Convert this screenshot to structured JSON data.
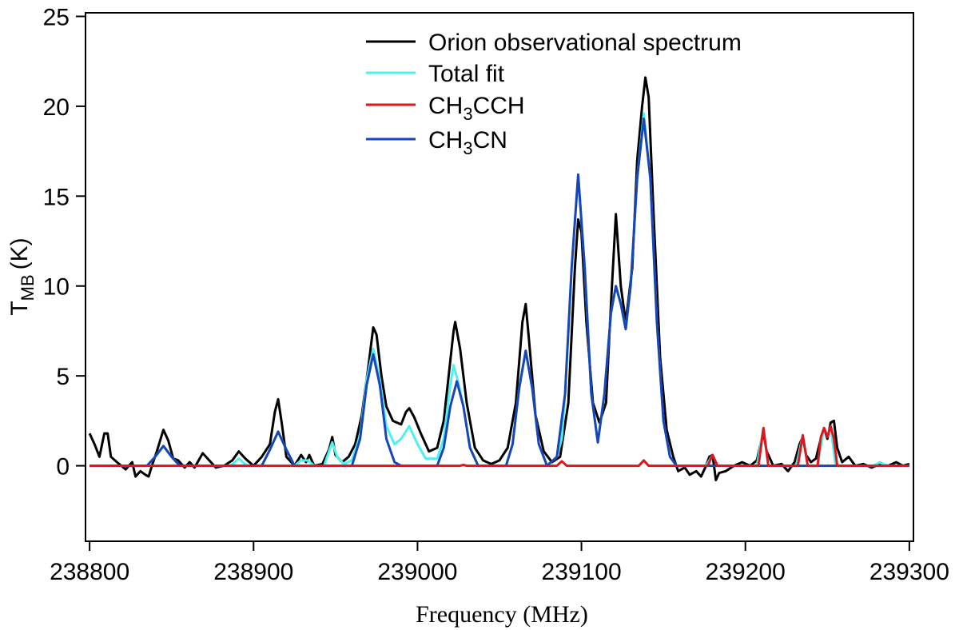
{
  "chart_data": {
    "type": "line",
    "xlabel": "Frequency (MHz)",
    "ylabel": {
      "symbol": "T",
      "subscript": "MB",
      "unit": "(K)"
    },
    "xlim": [
      238797.5,
      239302.5
    ],
    "ylim": [
      -4.2,
      25.2
    ],
    "xticks": [
      238800,
      238900,
      239000,
      239100,
      239200,
      239300
    ],
    "yticks": [
      0,
      5,
      10,
      15,
      20,
      25
    ],
    "legend": "top-center",
    "series": [
      {
        "name": "Orion observational spectrum",
        "color": "#000000",
        "x": [
          238800,
          238803,
          238806,
          238809,
          238811,
          238813,
          238818,
          238822,
          238826,
          238828,
          238831,
          238834,
          238836,
          238838,
          238841,
          238845,
          238848,
          238851,
          238854,
          238858,
          238861,
          238864,
          238869,
          238873,
          238877,
          238882,
          238887,
          238891,
          238895,
          238900,
          238905,
          238910,
          238913,
          238915,
          238917,
          238920,
          238925,
          238929,
          238932,
          238934,
          238937,
          238942,
          238946,
          238948,
          238950,
          238954,
          238958,
          238962,
          238966,
          238970,
          238973,
          238975,
          238978,
          238981,
          238985,
          238990,
          238993,
          238995,
          238998,
          239002,
          239007,
          239012,
          239016,
          239019,
          239022,
          239023,
          239026,
          239030,
          239035,
          239040,
          239045,
          239050,
          239055,
          239060,
          239064,
          239066,
          239068,
          239072,
          239077,
          239082,
          239087,
          239092,
          239096,
          239098,
          239100,
          239103,
          239107,
          239111,
          239115,
          239118,
          239121,
          239124,
          239127,
          239131,
          239134,
          239137,
          239139,
          239141,
          239144,
          239148,
          239152,
          239156,
          239159,
          239163,
          239166,
          239170,
          239173,
          239176,
          239178,
          239180,
          239182,
          239184,
          239188,
          239193,
          239198,
          239203,
          239207,
          239210,
          239211,
          239213,
          239217,
          239222,
          239226,
          239230,
          239233,
          239235,
          239237,
          239240,
          239243,
          239246,
          239248,
          239250,
          239252,
          239254,
          239256,
          239259,
          239263,
          239267,
          239272,
          239277,
          239282,
          239287,
          239292,
          239296,
          239300
        ],
        "values": [
          1.8,
          1.2,
          0.5,
          1.8,
          1.8,
          0.5,
          0.1,
          -0.2,
          0.2,
          -0.6,
          -0.3,
          -0.5,
          -0.6,
          0.0,
          0.8,
          2.0,
          1.4,
          0.4,
          0.3,
          -0.1,
          0.2,
          -0.1,
          0.7,
          0.3,
          -0.1,
          0.0,
          0.3,
          0.8,
          0.4,
          0.0,
          0.5,
          1.2,
          3.0,
          3.7,
          2.5,
          0.5,
          0.0,
          0.6,
          0.2,
          0.6,
          0.0,
          0.1,
          0.9,
          1.6,
          0.6,
          0.2,
          0.5,
          1.2,
          2.8,
          5.5,
          7.7,
          7.3,
          5.0,
          3.3,
          2.5,
          2.3,
          3.0,
          3.2,
          2.7,
          1.8,
          0.8,
          1.0,
          2.5,
          5.0,
          7.5,
          8.0,
          6.5,
          3.5,
          1.0,
          0.3,
          0.1,
          0.3,
          1.0,
          3.5,
          8.0,
          9.0,
          7.0,
          2.8,
          0.8,
          0.2,
          0.5,
          3.5,
          11.0,
          13.7,
          13.0,
          8.0,
          3.5,
          2.4,
          3.5,
          9.0,
          14.0,
          10.0,
          8.0,
          11.0,
          17.0,
          20.0,
          21.6,
          20.5,
          14.0,
          6.0,
          2.0,
          0.5,
          -0.3,
          -0.1,
          -0.5,
          -0.3,
          -0.6,
          0.0,
          0.5,
          0.6,
          -0.8,
          -0.4,
          -0.3,
          0.0,
          0.2,
          0.0,
          0.3,
          1.5,
          1.8,
          0.8,
          0.0,
          0.1,
          -0.3,
          0.2,
          1.2,
          1.6,
          0.6,
          0.2,
          0.4,
          1.5,
          2.1,
          1.5,
          2.4,
          2.5,
          1.0,
          0.2,
          0.5,
          0.0,
          0.1,
          -0.1,
          0.1,
          0.0,
          0.2,
          0.0,
          0.1
        ]
      },
      {
        "name": "Total fit",
        "color": "#4ff0f0",
        "x": [
          238800,
          238835,
          238840,
          238845,
          238850,
          238855,
          238886,
          238891,
          238896,
          238905,
          238910,
          238915,
          238920,
          238925,
          238929,
          238933,
          238937,
          238943,
          238946,
          238948,
          238951,
          238955,
          238960,
          238965,
          238969,
          238973,
          238977,
          238981,
          238986,
          238990,
          238995,
          239000,
          239005,
          239012,
          239016,
          239020,
          239022,
          239025,
          239028,
          239032,
          239037,
          239054,
          239058,
          239062,
          239066,
          239070,
          239074,
          239079,
          239085,
          239088,
          239090,
          239094,
          239098,
          239102,
          239106,
          239110,
          239114,
          239118,
          239121,
          239124,
          239127,
          239130,
          239134,
          239138,
          239142,
          239146,
          239150,
          239154,
          239158,
          239176,
          239180,
          239183,
          239207,
          239211,
          239214,
          239231,
          239235,
          239238,
          239244,
          239248,
          239250,
          239252,
          239255,
          239278,
          239282,
          239286,
          239300
        ],
        "values": [
          0,
          0,
          0.5,
          1.1,
          0.5,
          0,
          0,
          0.4,
          0,
          0,
          0.9,
          1.9,
          0.9,
          0,
          0.3,
          0.3,
          0,
          0,
          0.8,
          1.3,
          0.5,
          0.1,
          0.3,
          1.7,
          4.8,
          6.5,
          4.8,
          2.2,
          1.2,
          1.5,
          2.2,
          1.2,
          0.4,
          0.4,
          1.5,
          4.5,
          5.6,
          4.6,
          3.3,
          1.0,
          0,
          0,
          1.2,
          4.3,
          6.4,
          4.3,
          1.2,
          0,
          0.5,
          1.5,
          4,
          11,
          16.2,
          11,
          4,
          1.3,
          4,
          8.5,
          10,
          9,
          7.6,
          10,
          16,
          19.6,
          16,
          8,
          2.5,
          0.5,
          0,
          0,
          0.6,
          0,
          0,
          2.1,
          0,
          0,
          1.7,
          0,
          0,
          2.1,
          1.7,
          2.2,
          0,
          0,
          0.2,
          0,
          0
        ]
      },
      {
        "name": "CH3CN",
        "color": "#1a45b8",
        "x": [
          238800,
          238835,
          238840,
          238845,
          238850,
          238855,
          238905,
          238910,
          238915,
          238920,
          238925,
          238960,
          238965,
          238969,
          238973,
          238977,
          238981,
          238986,
          238990,
          239012,
          239016,
          239020,
          239024,
          239028,
          239032,
          239037,
          239054,
          239058,
          239062,
          239066,
          239070,
          239074,
          239079,
          239085,
          239090,
          239094,
          239098,
          239102,
          239106,
          239110,
          239114,
          239118,
          239121,
          239124,
          239127,
          239130,
          239134,
          239138,
          239142,
          239146,
          239150,
          239154,
          239158,
          239300
        ],
        "values": [
          0,
          0,
          0.5,
          1.1,
          0.5,
          0,
          0,
          0.9,
          1.9,
          0.9,
          0,
          0,
          1.5,
          4.5,
          6.2,
          4.5,
          1.5,
          0.2,
          0,
          0,
          1.0,
          3.3,
          4.7,
          3.3,
          1.0,
          0,
          0,
          1.2,
          4.3,
          6.4,
          4.3,
          1.2,
          0,
          0.5,
          4,
          11,
          16.2,
          11,
          4,
          1.3,
          4,
          8.5,
          10,
          9,
          7.6,
          10,
          16,
          19.3,
          16,
          8,
          2.5,
          0.5,
          0,
          0
        ]
      },
      {
        "name": "CH3CCH",
        "color": "#e0161b",
        "x": [
          238800,
          239026,
          239028,
          239030,
          239085,
          239088,
          239091,
          239135,
          239138,
          239141,
          239177,
          239180,
          239183,
          239208,
          239211,
          239214,
          239232,
          239235,
          239238,
          239244,
          239246,
          239248,
          239250,
          239252,
          239254,
          239256,
          239300
        ],
        "values": [
          0,
          0,
          0.05,
          0,
          0,
          0.25,
          0,
          0,
          0.3,
          0,
          0,
          0.6,
          0,
          0,
          2.1,
          0,
          0,
          1.7,
          0,
          0,
          1.6,
          2.1,
          1.6,
          2.2,
          1.5,
          0,
          0
        ]
      }
    ],
    "draw_order": [
      0,
      1,
      2,
      3
    ],
    "legend_order": [
      0,
      1,
      3,
      2
    ]
  }
}
